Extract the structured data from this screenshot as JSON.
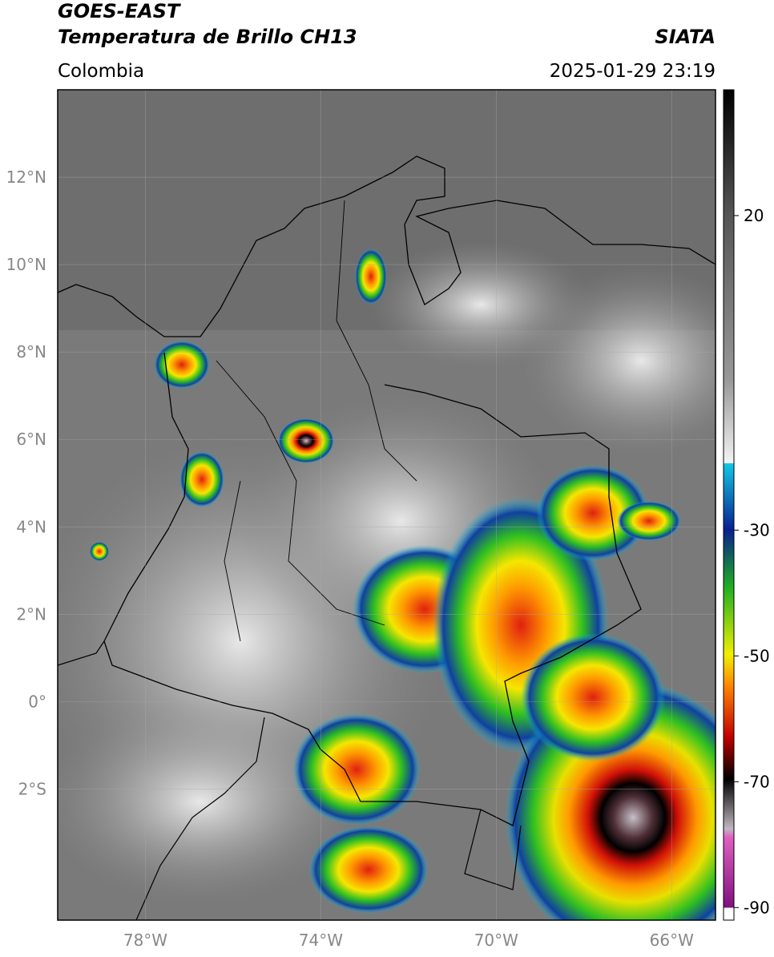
{
  "header": {
    "satellite": "GOES-EAST",
    "product": "Temperatura de Brillo CH13",
    "source": "SIATA",
    "region": "Colombia",
    "datetime": "2025-01-29 23:19"
  },
  "map": {
    "lon_range": [
      -80,
      -65
    ],
    "lat_range": [
      -5,
      14
    ],
    "lat_ticks": [
      {
        "value": 12,
        "label": "12°N"
      },
      {
        "value": 10,
        "label": "10°N"
      },
      {
        "value": 8,
        "label": "8°N"
      },
      {
        "value": 6,
        "label": "6°N"
      },
      {
        "value": 4,
        "label": "4°N"
      },
      {
        "value": 2,
        "label": "2°N"
      },
      {
        "value": 0,
        "label": "0°"
      },
      {
        "value": -2,
        "label": "2°S"
      }
    ],
    "lon_ticks": [
      {
        "value": -78,
        "label": "78°W"
      },
      {
        "value": -74,
        "label": "74°W"
      },
      {
        "value": -70,
        "label": "70°W"
      },
      {
        "value": -66,
        "label": "66°W"
      }
    ]
  },
  "colorbar": {
    "range": [
      -92,
      40
    ],
    "ticks": [
      20,
      -30,
      -50,
      -70,
      -90
    ]
  }
}
